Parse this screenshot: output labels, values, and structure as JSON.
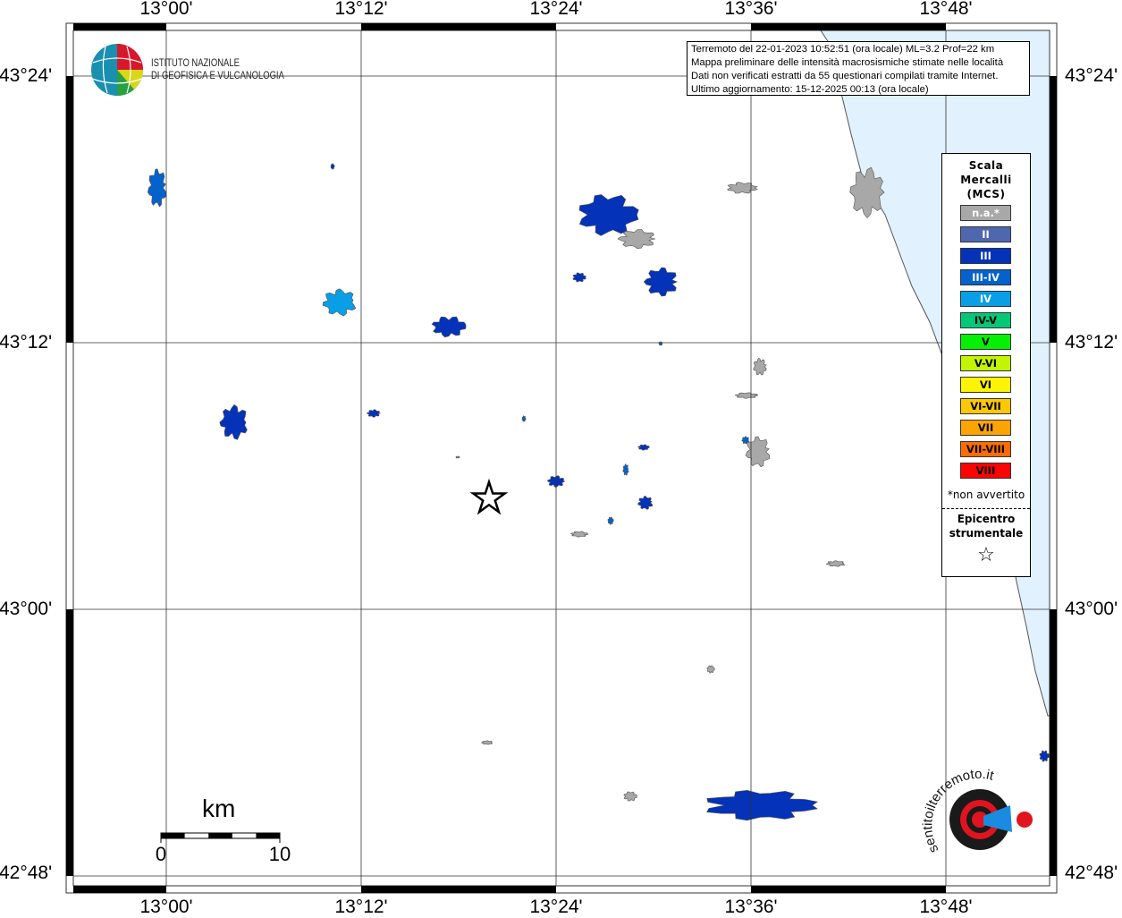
{
  "map": {
    "longitude_labels": [
      "13°00'",
      "13°12'",
      "13°24'",
      "13°36'",
      "13°48'"
    ],
    "latitude_labels": [
      "43°24'",
      "43°12'",
      "43°00'",
      "42°48'"
    ],
    "sea_color": "#e1f1fd",
    "epicenter_marker": "star-icon"
  },
  "logos": {
    "ingv": {
      "line1": "ISTITUTO NAZIONALE",
      "line2": "DI GEOFISICA E VULCANOLOGIA"
    },
    "hsit": {
      "text": "hai sentito il terremoto.it www."
    }
  },
  "info": {
    "lines": [
      "Terremoto del 22-01-2023 10:52:51 (ora locale) ML=3.2 Prof=22 km",
      "Mappa preliminare delle intensità macrosismiche stimate nelle località",
      "Dati non verificati estratti da 55 questionari compilati tramite Internet.",
      "Ultimo aggiornamento: 15-12-2025 00:13 (ora locale)"
    ]
  },
  "legend": {
    "title": [
      "Scala",
      "Mercalli",
      "(MCS)"
    ],
    "items": [
      {
        "label": "n.a.*",
        "color": "#a8a8a8",
        "text_color": "#ffffff"
      },
      {
        "label": "II",
        "color": "#4f67ae",
        "text_color": "#ffffff"
      },
      {
        "label": "III",
        "color": "#0432b8",
        "text_color": "#ffffff"
      },
      {
        "label": "III-IV",
        "color": "#0462cc",
        "text_color": "#ffffff"
      },
      {
        "label": "IV",
        "color": "#0a9ee6",
        "text_color": "#ffffff"
      },
      {
        "label": "IV-V",
        "color": "#04c878",
        "text_color": "#000000"
      },
      {
        "label": "V",
        "color": "#06f006",
        "text_color": "#000000"
      },
      {
        "label": "V-VI",
        "color": "#c2f404",
        "text_color": "#000000"
      },
      {
        "label": "VI",
        "color": "#fcf404",
        "text_color": "#000000"
      },
      {
        "label": "VI-VII",
        "color": "#fcc804",
        "text_color": "#000000"
      },
      {
        "label": "VII",
        "color": "#fca404",
        "text_color": "#000000"
      },
      {
        "label": "VII-VIII",
        "color": "#fc6c04",
        "text_color": "#000000"
      },
      {
        "label": "VIII",
        "color": "#fc0404",
        "text_color": "#000000"
      }
    ],
    "note": "*non avvertito",
    "epicenter_label": [
      "Epicentro",
      "strumentale"
    ],
    "epicenter_symbol": "☆"
  },
  "scale_bar": {
    "unit": "km",
    "min_label": "0",
    "max_label": "10"
  }
}
